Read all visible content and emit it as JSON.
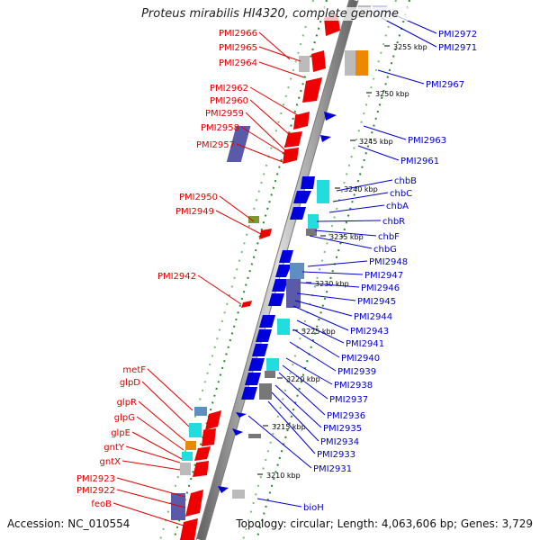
{
  "title": "Proteus mirabilis HI4320, complete genome",
  "accession": "Accession: NC_010554",
  "topology": "Topology: circular; Length: 4,063,606 bp; Genes: 3,729",
  "kbp_labels": [
    "3255 kbp",
    "3250 kbp",
    "3245 kbp",
    "3240 kbp",
    "3235 kbp",
    "3230 kbp",
    "3225 kbp",
    "3220 kbp",
    "3215 kbp",
    "3210 kbp"
  ],
  "left_genes": [
    "PMI2966",
    "PMI2965",
    "PMI2964",
    "PMI2962",
    "PMI2960",
    "PMI2959",
    "PMI2958",
    "PMI2957",
    "PMI2950",
    "PMI2949",
    "PMI2942",
    "metF",
    "glpD",
    "glpR",
    "glpG",
    "glpE",
    "gntY",
    "gntX",
    "PMI2923",
    "PMI2922",
    "feoB"
  ],
  "right_genes": [
    "PMI2972",
    "PMI2971",
    "PMI2967",
    "PMI2963",
    "PMI2961",
    "chbB",
    "chbC",
    "chbA",
    "chbR",
    "chbF",
    "chbG",
    "PMI2948",
    "PMI2947",
    "PMI2946",
    "PMI2945",
    "PMI2944",
    "PMI2943",
    "PMI2941",
    "PMI2940",
    "PMI2939",
    "PMI2938",
    "PMI2937",
    "PMI2936",
    "PMI2935",
    "PMI2934",
    "PMI2933",
    "PMI2931",
    "bioH"
  ],
  "colors": {
    "forward": "#ee0000",
    "reverse": "#0000dd",
    "cyan": "#22dddd",
    "slate": "#5a5aa8",
    "steel": "#5f8fc0",
    "gray": "#777777",
    "olive": "#7a9a30",
    "orange": "#ee8800",
    "backbone": "#999999",
    "tick": "#2a8a2a"
  }
}
